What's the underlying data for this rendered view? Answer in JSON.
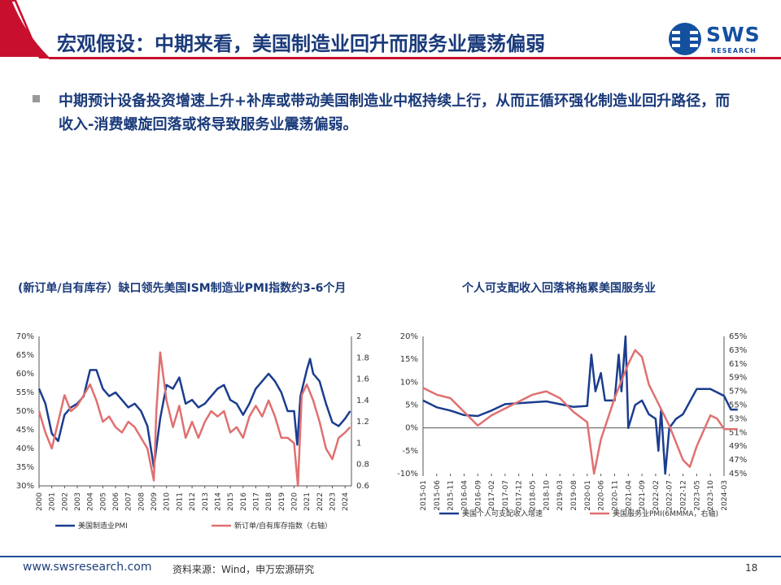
{
  "header": {
    "title": "宏观假设：中期来看，美国制造业回升而服务业震荡偏弱"
  },
  "logo": {
    "text": "SWS",
    "sub": "RESEARCH"
  },
  "bullet": {
    "text": "中期预计设备投资增速上升+补库或带动美国制造业中枢持续上行，从而正循环强化制造业回升路径，而收入-消费螺旋回落或将导致服务业震荡偏弱。"
  },
  "footer": {
    "url": "www.swsresearch.com",
    "source": "资料来源：Wind，申万宏源研究",
    "page": "18"
  },
  "colors": {
    "navy": "#1b3d8f",
    "salmon": "#e07070",
    "title": "#1a3a7a",
    "brandRed": "#c8102e",
    "brandBlue": "#1450a0"
  },
  "chart_data": [
    {
      "type": "line",
      "title": "(新订单/自有库存）缺口领先美国ISM制造业PMI指数约3-6个月",
      "categories": [
        "2000",
        "2001",
        "2002",
        "2003",
        "2004",
        "2005",
        "2006",
        "2007",
        "2008",
        "2009",
        "2010",
        "2011",
        "2012",
        "2013",
        "2014",
        "2015",
        "2016",
        "2017",
        "2018",
        "2019",
        "2020",
        "2021",
        "2022",
        "2023",
        "2024"
      ],
      "ylim_left": [
        30,
        70
      ],
      "ylim_right": [
        0.6,
        2.0
      ],
      "yticks_left": [
        "70%",
        "65%",
        "60%",
        "55%",
        "50%",
        "45%",
        "40%",
        "35%",
        "30%"
      ],
      "yticks_right": [
        "2",
        "1.8",
        "1.6",
        "1.4",
        "1.2",
        "1",
        "0.8",
        "0.6"
      ],
      "series": [
        {
          "name": "美国制造业PMI",
          "axis": "left",
          "color": "#1b3d8f",
          "values": [
            [
              2000,
              56
            ],
            [
              2000.5,
              52
            ],
            [
              2001,
              44
            ],
            [
              2001.5,
              42
            ],
            [
              2002,
              49
            ],
            [
              2002.5,
              51
            ],
            [
              2003,
              52
            ],
            [
              2003.5,
              54
            ],
            [
              2004,
              61
            ],
            [
              2004.5,
              61
            ],
            [
              2005,
              56
            ],
            [
              2005.5,
              54
            ],
            [
              2006,
              55
            ],
            [
              2006.5,
              53
            ],
            [
              2007,
              51
            ],
            [
              2007.5,
              52
            ],
            [
              2008,
              50
            ],
            [
              2008.5,
              46
            ],
            [
              2009,
              35
            ],
            [
              2009.5,
              48
            ],
            [
              2010,
              57
            ],
            [
              2010.5,
              56
            ],
            [
              2011,
              59
            ],
            [
              2011.5,
              52
            ],
            [
              2012,
              53
            ],
            [
              2012.5,
              51
            ],
            [
              2013,
              52
            ],
            [
              2013.5,
              54
            ],
            [
              2014,
              56
            ],
            [
              2014.5,
              57
            ],
            [
              2015,
              53
            ],
            [
              2015.5,
              52
            ],
            [
              2016,
              49
            ],
            [
              2016.5,
              52
            ],
            [
              2017,
              56
            ],
            [
              2017.5,
              58
            ],
            [
              2018,
              60
            ],
            [
              2018.5,
              58
            ],
            [
              2019,
              55
            ],
            [
              2019.5,
              50
            ],
            [
              2020,
              50
            ],
            [
              2020.25,
              41
            ],
            [
              2020.5,
              54
            ],
            [
              2021,
              61
            ],
            [
              2021.25,
              64
            ],
            [
              2021.5,
              60
            ],
            [
              2022,
              58
            ],
            [
              2022.5,
              52
            ],
            [
              2023,
              47
            ],
            [
              2023.5,
              46
            ],
            [
              2024,
              48
            ],
            [
              2024.4,
              50
            ]
          ]
        },
        {
          "name": "新订单/自有库存指数（右轴）",
          "axis": "right",
          "color": "#e07070",
          "values": [
            [
              2000,
              1.3
            ],
            [
              2000.5,
              1.1
            ],
            [
              2001,
              0.95
            ],
            [
              2001.5,
              1.2
            ],
            [
              2002,
              1.45
            ],
            [
              2002.5,
              1.3
            ],
            [
              2003,
              1.35
            ],
            [
              2003.5,
              1.45
            ],
            [
              2004,
              1.55
            ],
            [
              2004.5,
              1.4
            ],
            [
              2005,
              1.2
            ],
            [
              2005.5,
              1.25
            ],
            [
              2006,
              1.15
            ],
            [
              2006.5,
              1.1
            ],
            [
              2007,
              1.2
            ],
            [
              2007.5,
              1.15
            ],
            [
              2008,
              1.05
            ],
            [
              2008.5,
              0.95
            ],
            [
              2009,
              0.65
            ],
            [
              2009.2,
              1.3
            ],
            [
              2009.5,
              1.85
            ],
            [
              2010,
              1.4
            ],
            [
              2010.5,
              1.15
            ],
            [
              2011,
              1.35
            ],
            [
              2011.5,
              1.05
            ],
            [
              2012,
              1.2
            ],
            [
              2012.5,
              1.05
            ],
            [
              2013,
              1.2
            ],
            [
              2013.5,
              1.3
            ],
            [
              2014,
              1.25
            ],
            [
              2014.5,
              1.3
            ],
            [
              2015,
              1.1
            ],
            [
              2015.5,
              1.15
            ],
            [
              2016,
              1.05
            ],
            [
              2016.5,
              1.25
            ],
            [
              2017,
              1.35
            ],
            [
              2017.5,
              1.25
            ],
            [
              2018,
              1.4
            ],
            [
              2018.5,
              1.25
            ],
            [
              2019,
              1.05
            ],
            [
              2019.5,
              1.05
            ],
            [
              2020,
              1.0
            ],
            [
              2020.3,
              0.6
            ],
            [
              2020.6,
              1.45
            ],
            [
              2021,
              1.55
            ],
            [
              2021.5,
              1.4
            ],
            [
              2022,
              1.2
            ],
            [
              2022.5,
              0.95
            ],
            [
              2023,
              0.85
            ],
            [
              2023.5,
              1.05
            ],
            [
              2024,
              1.1
            ],
            [
              2024.4,
              1.15
            ]
          ]
        }
      ]
    },
    {
      "type": "line",
      "title": "个人可支配收入回落将拖累美国服务业",
      "categories": [
        "2015-01",
        "2015-06",
        "2015-11",
        "2016-04",
        "2016-09",
        "2017-02",
        "2017-07",
        "2017-12",
        "2018-05",
        "2018-10",
        "2019-03",
        "2019-08",
        "2020-01",
        "2020-06",
        "2020-11",
        "2021-04",
        "2021-09",
        "2022-02",
        "2022-07",
        "2022-12",
        "2023-05",
        "2023-10",
        "2024-03"
      ],
      "ylim_left": [
        -10,
        20
      ],
      "ylim_right": [
        45,
        65
      ],
      "yticks_left": [
        "20%",
        "15%",
        "10%",
        "5%",
        "0%",
        "-5%",
        "-10%"
      ],
      "yticks_right": [
        "65%",
        "63%",
        "61%",
        "59%",
        "57%",
        "55%",
        "53%",
        "51%",
        "49%",
        "47%",
        "45%"
      ],
      "series": [
        {
          "name": "美国个人可支配收入增速",
          "axis": "left",
          "color": "#1b3d8f",
          "values": [
            [
              0,
              6
            ],
            [
              1,
              4.5
            ],
            [
              2,
              3.8
            ],
            [
              3,
              2.8
            ],
            [
              4,
              2.6
            ],
            [
              5,
              3.8
            ],
            [
              6,
              5.2
            ],
            [
              7,
              5.4
            ],
            [
              8,
              5.6
            ],
            [
              9,
              5.8
            ],
            [
              10,
              5.2
            ],
            [
              11,
              4.6
            ],
            [
              12,
              4.8
            ],
            [
              12.3,
              16
            ],
            [
              12.6,
              8
            ],
            [
              13,
              12
            ],
            [
              13.3,
              6
            ],
            [
              14,
              6
            ],
            [
              14.3,
              16
            ],
            [
              14.5,
              8
            ],
            [
              14.8,
              20
            ],
            [
              15,
              0
            ],
            [
              15.5,
              5
            ],
            [
              16,
              6
            ],
            [
              16.5,
              3
            ],
            [
              17,
              2
            ],
            [
              17.2,
              -5
            ],
            [
              17.4,
              4
            ],
            [
              17.7,
              -10
            ],
            [
              18,
              0
            ],
            [
              18.5,
              2
            ],
            [
              19,
              3
            ],
            [
              20,
              8.5
            ],
            [
              21,
              8.5
            ],
            [
              22,
              7
            ],
            [
              22.5,
              4
            ],
            [
              23,
              4
            ]
          ]
        },
        {
          "name": "美国服务业PMI(6MMMA，右轴)",
          "axis": "right",
          "color": "#e07070",
          "values": [
            [
              0,
              57.5
            ],
            [
              1,
              56.5
            ],
            [
              2,
              56
            ],
            [
              3,
              54
            ],
            [
              4,
              52
            ],
            [
              5,
              53.5
            ],
            [
              6,
              54.5
            ],
            [
              7,
              55.5
            ],
            [
              8,
              56.5
            ],
            [
              9,
              57
            ],
            [
              10,
              56
            ],
            [
              11,
              54
            ],
            [
              12,
              52.5
            ],
            [
              12.5,
              45
            ],
            [
              13,
              50
            ],
            [
              14,
              56
            ],
            [
              15,
              61
            ],
            [
              15.5,
              63
            ],
            [
              16,
              62
            ],
            [
              16.5,
              58
            ],
            [
              17,
              56
            ],
            [
              18,
              52
            ],
            [
              19,
              47
            ],
            [
              19.5,
              46
            ],
            [
              20,
              49
            ],
            [
              21,
              53.5
            ],
            [
              21.5,
              53
            ],
            [
              22,
              51.5
            ],
            [
              23,
              51.5
            ]
          ]
        }
      ]
    }
  ],
  "chart1_labels": {
    "title": "(新订单/自有库存）缺口领先美国ISM制造业PMI指数约3-6个月",
    "yticks_left": [
      "70%",
      "65%",
      "60%",
      "55%",
      "50%",
      "45%",
      "40%",
      "35%",
      "30%"
    ],
    "yticks_right": [
      "2",
      "1.8",
      "1.6",
      "1.4",
      "1.2",
      "1",
      "0.8",
      "0.6"
    ],
    "legend": [
      "美国制造业PMI",
      "新订单/自有库存指数（右轴）"
    ]
  },
  "chart2_labels": {
    "title": "个人可支配收入回落将拖累美国服务业",
    "yticks_left": [
      "20%",
      "15%",
      "10%",
      "5%",
      "0%",
      "-5%",
      "-10%"
    ],
    "yticks_right": [
      "65%",
      "63%",
      "61%",
      "59%",
      "57%",
      "55%",
      "53%",
      "51%",
      "49%",
      "47%",
      "45%"
    ],
    "legend": [
      "美国个人可支配收入增速",
      "美国服务业PMI(6MMMA，右轴)"
    ]
  }
}
